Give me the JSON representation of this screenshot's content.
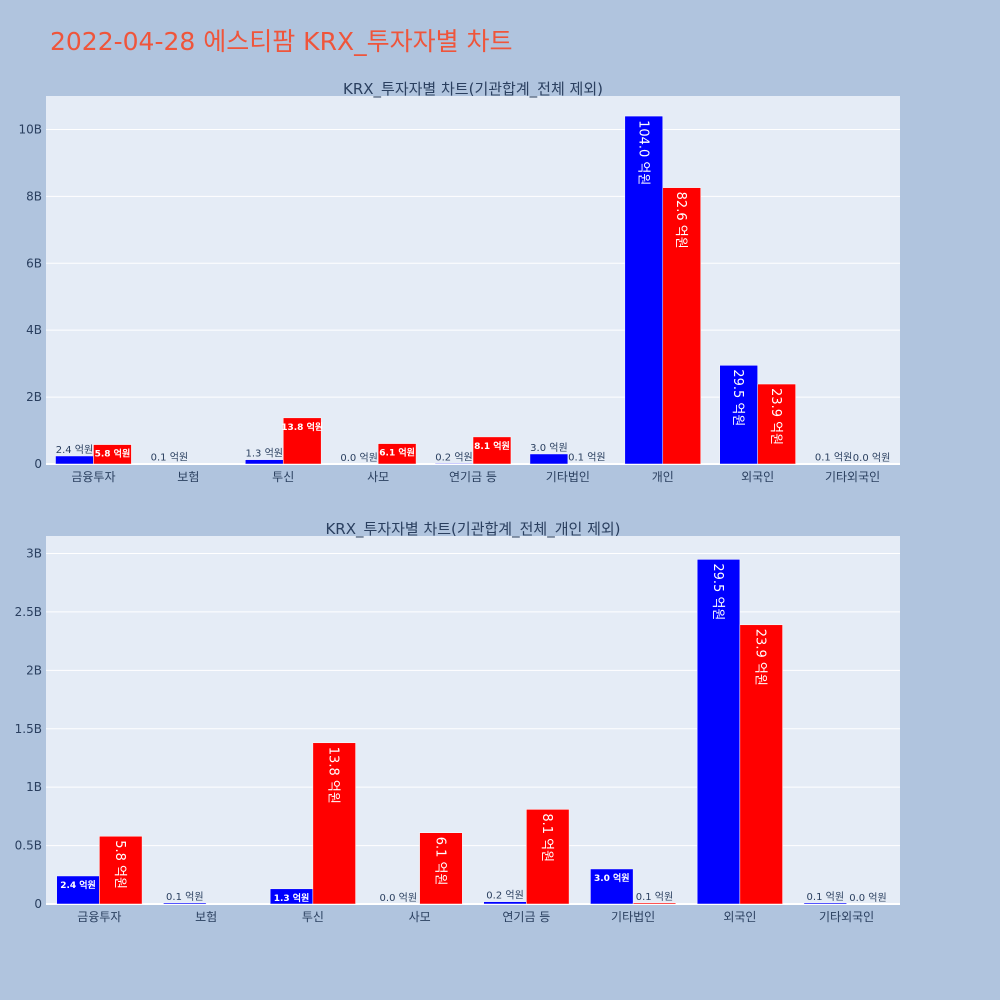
{
  "title": "2022-04-28 에스티팜 KRX_투자자별 차트",
  "colors": {
    "buy": "#0000ff",
    "sell": "#ff0000",
    "plot_bg": "#e5ecf6",
    "page_bg": "#b0c4de",
    "title": "#ef553b"
  },
  "chart_data": [
    {
      "type": "bar",
      "title": "KRX_투자자별 차트(기관합계_전체 제외)",
      "categories": [
        "금융투자",
        "보험",
        "투신",
        "사모",
        "연기금 등",
        "기타법인",
        "개인",
        "외국인",
        "기타외국인"
      ],
      "series": [
        {
          "color": "#0000ff",
          "values": [
            240000000,
            10000000,
            130000000,
            0,
            20000000,
            300000000,
            10400000000,
            2950000000,
            10000000
          ],
          "labels": [
            "2.4 억원",
            "0.1 억원",
            "1.3 억원",
            "0.0 억원",
            "0.2 억원",
            "3.0 억원",
            "104.0 억원",
            "29.5 억원",
            "0.1 억원"
          ]
        },
        {
          "color": "#ff0000",
          "values": [
            580000000,
            0,
            1380000000,
            610000000,
            810000000,
            10000000,
            8260000000,
            2390000000,
            0
          ],
          "labels": [
            "5.8 억원",
            "",
            "13.8 억원",
            "6.1 억원",
            "8.1 억원",
            "0.1 억원",
            "82.6 억원",
            "23.9 억원",
            "0.0 억원"
          ]
        }
      ],
      "ylim": [
        0,
        11000000000
      ],
      "yticks": [
        0,
        2000000000,
        4000000000,
        6000000000,
        8000000000,
        10000000000
      ],
      "yticklabels": [
        "0",
        "2B",
        "4B",
        "6B",
        "8B",
        "10B"
      ],
      "grid": true
    },
    {
      "type": "bar",
      "title": "KRX_투자자별 차트(기관합계_전체_개인 제외)",
      "categories": [
        "금융투자",
        "보험",
        "투신",
        "사모",
        "연기금 등",
        "기타법인",
        "외국인",
        "기타외국인"
      ],
      "series": [
        {
          "color": "#0000ff",
          "values": [
            240000000,
            10000000,
            130000000,
            0,
            20000000,
            300000000,
            2950000000,
            10000000
          ],
          "labels": [
            "2.4 억원",
            "0.1 억원",
            "1.3 억원",
            "0.0 억원",
            "0.2 억원",
            "3.0 억원",
            "29.5 억원",
            "0.1 억원"
          ]
        },
        {
          "color": "#ff0000",
          "values": [
            580000000,
            0,
            1380000000,
            610000000,
            810000000,
            10000000,
            2390000000,
            0
          ],
          "labels": [
            "5.8 억원",
            "",
            "13.8 억원",
            "6.1 억원",
            "8.1 억원",
            "0.1 억원",
            "23.9 억원",
            "0.0 억원"
          ]
        }
      ],
      "ylim": [
        0,
        3150000000
      ],
      "yticks": [
        0,
        500000000,
        1000000000,
        1500000000,
        2000000000,
        2500000000,
        3000000000
      ],
      "yticklabels": [
        "0",
        "0.5B",
        "1B",
        "1.5B",
        "2B",
        "2.5B",
        "3B"
      ],
      "grid": true
    }
  ]
}
